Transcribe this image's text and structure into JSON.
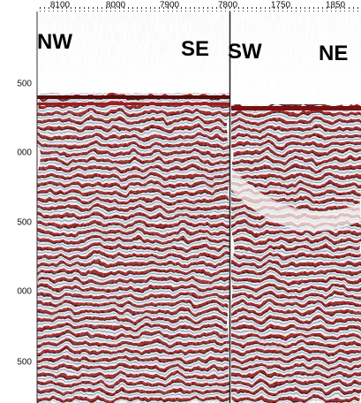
{
  "top_axis": {
    "labels": [
      "8100",
      "8000",
      "7900",
      "7800",
      "1750",
      "1850"
    ]
  },
  "left_axis": {
    "labels": [
      "500",
      "000",
      "500",
      "000",
      "500"
    ]
  },
  "panels": [
    {
      "left_label": "NW",
      "right_label": "SE"
    },
    {
      "left_label": "SW",
      "right_label": "NE"
    }
  ]
}
